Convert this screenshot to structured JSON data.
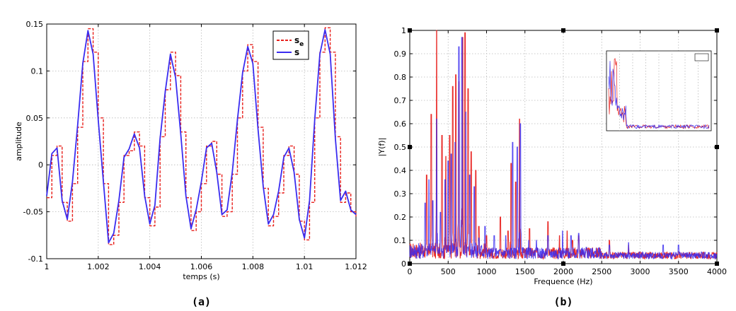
{
  "chart_data": [
    {
      "type": "line",
      "caption": "(a)",
      "xlabel": "temps (s)",
      "ylabel": "amplitude",
      "xlim": [
        1,
        1.012
      ],
      "ylim": [
        -0.1,
        0.15
      ],
      "x_ticks": [
        1,
        1.002,
        1.004,
        1.006,
        1.008,
        1.01,
        1.012
      ],
      "x_tick_labels": [
        "1",
        "1.002",
        "1.004",
        "1.006",
        "1.008",
        "1.01",
        "1.012"
      ],
      "y_ticks": [
        -0.1,
        -0.05,
        0,
        0.05,
        0.1,
        0.15
      ],
      "y_tick_labels": [
        "-0.1",
        "-0.05",
        "0",
        "0.05",
        "0.1",
        "0.15"
      ],
      "grid": true,
      "legend": "top-right",
      "series": [
        {
          "name": "s",
          "name_sub": "e",
          "color": "#e8211d",
          "style": "dashed",
          "x": [
            1.0,
            1.0002,
            1.0004,
            1.0006,
            1.0008,
            1.001,
            1.0012,
            1.0014,
            1.0016,
            1.0018,
            1.002,
            1.0022,
            1.0024,
            1.0026,
            1.0028,
            1.003,
            1.0032,
            1.0034,
            1.0036,
            1.0038,
            1.004,
            1.0042,
            1.0044,
            1.0046,
            1.0048,
            1.005,
            1.0052,
            1.0054,
            1.0056,
            1.0058,
            1.006,
            1.0062,
            1.0064,
            1.0066,
            1.0068,
            1.007,
            1.0072,
            1.0074,
            1.0076,
            1.0078,
            1.008,
            1.0082,
            1.0084,
            1.0086,
            1.0088,
            1.009,
            1.0092,
            1.0094,
            1.0096,
            1.0098,
            1.01,
            1.0102,
            1.0104,
            1.0106,
            1.0108,
            1.011,
            1.0112,
            1.0114,
            1.0116,
            1.0118,
            1.012
          ],
          "y": [
            -0.035,
            0.01,
            0.02,
            -0.04,
            -0.06,
            -0.02,
            0.04,
            0.11,
            0.145,
            0.12,
            0.05,
            -0.02,
            -0.085,
            -0.075,
            -0.04,
            0.01,
            0.015,
            0.035,
            0.02,
            -0.035,
            -0.065,
            -0.045,
            0.03,
            0.08,
            0.12,
            0.095,
            0.035,
            -0.035,
            -0.07,
            -0.05,
            -0.02,
            0.02,
            0.025,
            -0.01,
            -0.055,
            -0.05,
            -0.01,
            0.05,
            0.1,
            0.128,
            0.11,
            0.04,
            -0.025,
            -0.065,
            -0.055,
            -0.03,
            0.01,
            0.02,
            -0.01,
            -0.06,
            -0.08,
            -0.04,
            0.05,
            0.12,
            0.146,
            0.12,
            0.03,
            -0.04,
            -0.03,
            -0.05,
            -0.055
          ]
        },
        {
          "name": "s",
          "color": "#3a2cf0",
          "style": "solid",
          "x": [
            1.0,
            1.0002,
            1.0004,
            1.0006,
            1.0008,
            1.001,
            1.0012,
            1.0014,
            1.0016,
            1.0018,
            1.002,
            1.0022,
            1.0024,
            1.0026,
            1.0028,
            1.003,
            1.0032,
            1.0034,
            1.0036,
            1.0038,
            1.004,
            1.0042,
            1.0044,
            1.0046,
            1.0048,
            1.005,
            1.0052,
            1.0054,
            1.0056,
            1.0058,
            1.006,
            1.0062,
            1.0064,
            1.0066,
            1.0068,
            1.007,
            1.0072,
            1.0074,
            1.0076,
            1.0078,
            1.008,
            1.0082,
            1.0084,
            1.0086,
            1.0088,
            1.009,
            1.0092,
            1.0094,
            1.0096,
            1.0098,
            1.01,
            1.0102,
            1.0104,
            1.0106,
            1.0108,
            1.011,
            1.0112,
            1.0114,
            1.0116,
            1.0118,
            1.012
          ],
          "y": [
            -0.033,
            0.012,
            0.018,
            -0.038,
            -0.058,
            -0.018,
            0.042,
            0.108,
            0.143,
            0.118,
            0.048,
            -0.018,
            -0.083,
            -0.073,
            -0.038,
            0.008,
            0.017,
            0.033,
            0.018,
            -0.033,
            -0.063,
            -0.043,
            0.028,
            0.078,
            0.118,
            0.093,
            0.033,
            -0.033,
            -0.068,
            -0.048,
            -0.018,
            0.018,
            0.023,
            -0.008,
            -0.053,
            -0.048,
            -0.008,
            0.048,
            0.098,
            0.126,
            0.108,
            0.038,
            -0.023,
            -0.063,
            -0.053,
            -0.028,
            0.008,
            0.018,
            -0.008,
            -0.058,
            -0.078,
            -0.038,
            0.048,
            0.118,
            0.144,
            0.118,
            0.028,
            -0.038,
            -0.028,
            -0.048,
            -0.053
          ]
        }
      ]
    },
    {
      "type": "line",
      "caption": "(b)",
      "xlabel": "Frequence (Hz)",
      "ylabel": "|Y(f)|",
      "xlim": [
        0,
        4000
      ],
      "ylim": [
        0,
        1
      ],
      "x_ticks": [
        0,
        500,
        1000,
        1500,
        2000,
        2500,
        3000,
        3500,
        4000
      ],
      "x_tick_labels": [
        "0",
        "500",
        "1000",
        "1500",
        "2000",
        "2500",
        "3000",
        "3500",
        "4000"
      ],
      "y_ticks": [
        0,
        0.1,
        0.2,
        0.3,
        0.4,
        0.5,
        0.6,
        0.7,
        0.8,
        0.9,
        1
      ],
      "y_tick_labels": [
        "0",
        "0.1",
        "0.2",
        "0.3",
        "0.4",
        "0.5",
        "0.6",
        "0.7",
        "0.8",
        "0.9",
        "1"
      ],
      "grid": true,
      "series": [
        {
          "name": "red spectrum",
          "color": "#e8211d",
          "x": [
            220,
            280,
            350,
            420,
            470,
            520,
            560,
            600,
            640,
            690,
            720,
            760,
            800,
            860,
            900,
            1000,
            1180,
            1280,
            1320,
            1380,
            1430,
            1560,
            1800,
            1950,
            2050,
            2120,
            2200,
            2600,
            2850,
            3000,
            3350,
            3500,
            3800
          ],
          "y": [
            0.38,
            0.64,
            1.0,
            0.55,
            0.46,
            0.55,
            0.76,
            0.81,
            0.78,
            0.97,
            0.99,
            0.75,
            0.48,
            0.4,
            0.16,
            0.12,
            0.2,
            0.14,
            0.43,
            0.35,
            0.62,
            0.15,
            0.18,
            0.12,
            0.14,
            0.1,
            0.12,
            0.1,
            0.08,
            0.05,
            0.05,
            0.05,
            0.03
          ]
        },
        {
          "name": "blue spectrum",
          "color": "#3a2cf0",
          "x": [
            200,
            250,
            300,
            350,
            400,
            460,
            500,
            540,
            590,
            640,
            680,
            730,
            780,
            840,
            900,
            980,
            1100,
            1250,
            1340,
            1400,
            1440,
            1550,
            1650,
            1800,
            1990,
            2100,
            2200,
            2300,
            2600,
            2850,
            3300,
            3500,
            3800
          ],
          "y": [
            0.26,
            0.36,
            0.27,
            0.62,
            0.22,
            0.36,
            0.44,
            0.47,
            0.52,
            0.93,
            0.97,
            0.65,
            0.38,
            0.33,
            0.11,
            0.16,
            0.12,
            0.12,
            0.52,
            0.5,
            0.6,
            0.1,
            0.1,
            0.12,
            0.14,
            0.12,
            0.13,
            0.07,
            0.08,
            0.09,
            0.08,
            0.08,
            0.05
          ]
        }
      ],
      "inset": {
        "description": "thumbnail copy of the same spectrum, tick labels illegible"
      }
    }
  ]
}
